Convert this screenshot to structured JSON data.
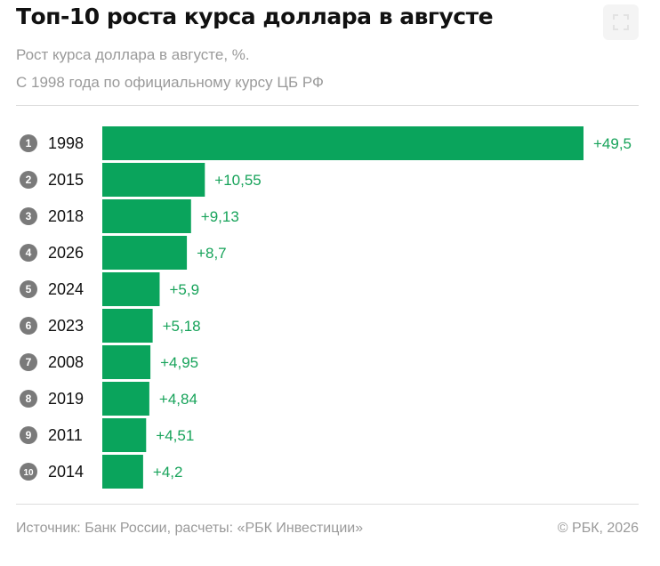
{
  "header": {
    "title": "Топ-10 роста курса доллара в августе",
    "subtitle_line1": "Рост курса доллара в августе, %.",
    "subtitle_line2": "С 1998 года по официальному курсу ЦБ РФ"
  },
  "footer": {
    "source": "Источник: Банк России, расчеты: «РБК Инвестиции»",
    "copyright": "© РБК, 2026"
  },
  "toolbar": {
    "expand_icon": "expand-icon"
  },
  "colors": {
    "bar": "#0aa45c",
    "value_label": "#17a35a",
    "rank_badge": "#7a7a7a",
    "text": "#111111",
    "muted": "#9a9a9a"
  },
  "chart_data": {
    "type": "bar",
    "orientation": "horizontal",
    "categories": [
      "1998",
      "2015",
      "2018",
      "2026",
      "2024",
      "2023",
      "2008",
      "2019",
      "2011",
      "2014"
    ],
    "ranks": [
      "1",
      "2",
      "3",
      "4",
      "5",
      "6",
      "7",
      "8",
      "9",
      "10"
    ],
    "values": [
      49.5,
      10.55,
      9.13,
      8.7,
      5.9,
      5.18,
      4.95,
      4.84,
      4.51,
      4.2
    ],
    "value_labels": [
      "+49,5",
      "+10,55",
      "+9,13",
      "+8,7",
      "+5,9",
      "+5,18",
      "+4,95",
      "+4,84",
      "+4,51",
      "+4,2"
    ],
    "xlim": [
      0,
      49.5
    ],
    "grid": false,
    "legend": "none"
  }
}
